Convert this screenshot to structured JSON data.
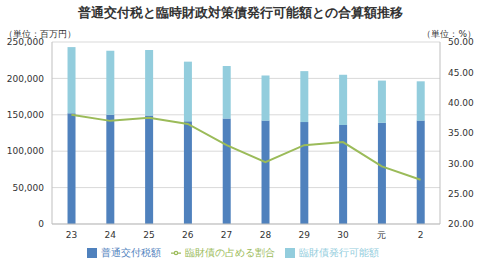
{
  "chart_data": {
    "type": "bar",
    "title": "普通交付税と臨時財政対策債発行可能額との合算額推移",
    "y_label": "（単位：百万円）",
    "y2_label": "（単位：%）",
    "categories": [
      "23",
      "24",
      "25",
      "26",
      "27",
      "28",
      "29",
      "30",
      "元",
      "2"
    ],
    "stacked": true,
    "grid": true,
    "legend": "bottom",
    "ylim": [
      0,
      250000
    ],
    "yticks": [
      0,
      {
        "value": 50000,
        "label": "50,000"
      },
      {
        "value": 100000,
        "label": "100,000"
      },
      {
        "value": 150000,
        "label": "150,000"
      },
      {
        "value": 200000,
        "label": "200,000"
      },
      {
        "value": 250000,
        "label": "250,000"
      }
    ],
    "y2lim": [
      20,
      50
    ],
    "y2ticks": [
      {
        "value": 20,
        "label": "20.00"
      },
      {
        "value": 25,
        "label": "25.00"
      },
      {
        "value": 30,
        "label": "30.00"
      },
      {
        "value": 35,
        "label": "35.00"
      },
      {
        "value": 40,
        "label": "40.00"
      },
      {
        "value": 45,
        "label": "45.00"
      },
      {
        "value": 50,
        "label": "50.00"
      }
    ],
    "series": [
      {
        "name": "普通交付税額",
        "type": "bar",
        "color": "#4f81bd",
        "values": [
          152000,
          150000,
          149000,
          141000,
          145000,
          142000,
          140000,
          136000,
          139000,
          142000
        ]
      },
      {
        "name": "臨財債発行可能額",
        "type": "bar",
        "color": "#93cddd",
        "values": [
          91000,
          88000,
          90000,
          82000,
          72000,
          62000,
          70000,
          69000,
          58000,
          54000
        ]
      },
      {
        "name": "臨財債の占める割合",
        "type": "line",
        "axis": "y2",
        "color": "#9bbb59",
        "values": [
          38.0,
          37.0,
          37.5,
          36.5,
          33.0,
          30.2,
          33.0,
          33.5,
          29.5,
          27.3
        ]
      }
    ]
  }
}
